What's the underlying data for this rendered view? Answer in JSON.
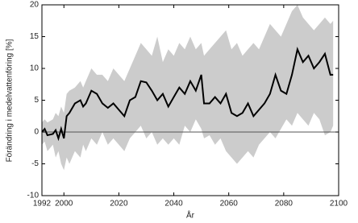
{
  "chart_data": {
    "type": "line",
    "x_label": "År",
    "y_label": "Förändring i medelvattenföring [%]",
    "x": [
      1992,
      1993,
      1994,
      1996,
      1997,
      1998,
      1999,
      2000,
      2001,
      2002,
      2004,
      2006,
      2007,
      2008,
      2010,
      2012,
      2014,
      2016,
      2018,
      2020,
      2022,
      2024,
      2026,
      2028,
      2030,
      2032,
      2034,
      2036,
      2038,
      2040,
      2042,
      2044,
      2046,
      2048,
      2050,
      2051,
      2053,
      2055,
      2057,
      2059,
      2061,
      2063,
      2065,
      2067,
      2069,
      2071,
      2073,
      2075,
      2077,
      2079,
      2081,
      2083,
      2085,
      2087,
      2089,
      2091,
      2093,
      2095,
      2097,
      2098
    ],
    "series": [
      {
        "color": "#000000",
        "values": [
          0,
          0.5,
          -0.5,
          -0.3,
          0.3,
          -1,
          0.5,
          -1,
          2.5,
          3,
          4.5,
          5,
          4,
          4.5,
          6.5,
          6,
          4.5,
          3.8,
          4.5,
          3.5,
          2.5,
          5,
          5.5,
          8,
          7.8,
          6.5,
          5,
          6,
          4,
          5.5,
          7,
          6,
          8,
          6.5,
          9,
          4.5,
          4.5,
          5.5,
          4.5,
          6,
          3,
          2.5,
          3,
          4.5,
          2.5,
          3.5,
          4.5,
          6,
          9,
          6.5,
          6,
          9,
          13,
          11,
          12,
          10,
          11,
          12.3,
          9,
          9
        ]
      }
    ],
    "band": {
      "color": "#cccccc",
      "upper": [
        1.5,
        2,
        1.5,
        2,
        3,
        2.5,
        4,
        3,
        6,
        6.5,
        7,
        8,
        7,
        8,
        10,
        9,
        9,
        8,
        10,
        9,
        8,
        10,
        12,
        14,
        13,
        12,
        15,
        11,
        13,
        12,
        14,
        13,
        15,
        13,
        14,
        12,
        13,
        14,
        15,
        16,
        13,
        14,
        12,
        13,
        14,
        13,
        15,
        17,
        16,
        15,
        17,
        19,
        20,
        18,
        17,
        16,
        17,
        18,
        17,
        17.5
      ],
      "lower": [
        -2,
        -1.5,
        -3,
        -2,
        -4,
        -3,
        -5,
        -6,
        -4,
        -5,
        -3,
        -4,
        -2,
        -3,
        -1,
        -2,
        0,
        -2,
        -1,
        -2,
        -3,
        -1,
        0,
        1,
        -1,
        0,
        -2,
        -1,
        -2,
        -1,
        -2,
        1,
        0,
        2,
        0.5,
        -1,
        -0.5,
        -2,
        -1,
        -3,
        -4,
        -5,
        -4,
        -3,
        -4,
        -2,
        -1,
        0,
        -1,
        0.5,
        2,
        1,
        3,
        2,
        1,
        3,
        2,
        -0.5,
        0,
        1
      ]
    },
    "xlim": [
      1992,
      2100
    ],
    "xticks": [
      1992,
      2000,
      2020,
      2040,
      2060,
      2080,
      2100
    ],
    "ylim": [
      -10,
      20
    ],
    "yticks": [
      -10,
      -5,
      0,
      5,
      10,
      15,
      20
    ],
    "zero_line": true
  }
}
